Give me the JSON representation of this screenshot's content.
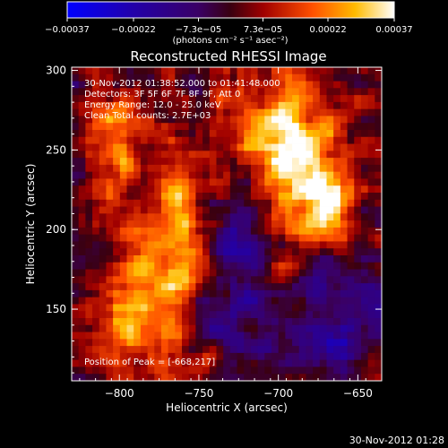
{
  "chart_data": {
    "type": "heatmap",
    "title": "Reconstructed RHESSI Image",
    "xlabel": "Heliocentric X (arcsec)",
    "ylabel": "Heliocentric Y (arcsec)",
    "xlim": [
      -830,
      -635
    ],
    "ylim": [
      105,
      302
    ],
    "xticks": [
      {
        "value": -800,
        "label": "−800"
      },
      {
        "value": -750,
        "label": "−750"
      },
      {
        "value": -700,
        "label": "−700"
      },
      {
        "value": -650,
        "label": "−650"
      }
    ],
    "yticks": [
      {
        "value": 150,
        "label": "150"
      },
      {
        "value": 200,
        "label": "200"
      },
      {
        "value": 250,
        "label": "250"
      },
      {
        "value": 300,
        "label": "300"
      }
    ],
    "colorbar": {
      "range": [
        -0.00037,
        0.00037
      ],
      "tick_values": [
        -0.00037,
        -0.00022,
        -7.3e-05,
        7.3e-05,
        0.00022,
        0.00037
      ],
      "tick_labels": [
        "−0.00037",
        "−0.00022",
        "−7.3e−05",
        "7.3e−05",
        "0.00022",
        "0.00037"
      ],
      "label": "(photons cm⁻² s⁻¹ asec⁻²)"
    },
    "annotations": [
      "30-Nov-2012 01:38:52.000 to 01:41:48.000",
      "Detectors: 3F 5F 6F 7F 8F 9F, Att 0",
      "Energy Range: 12.0 - 25.0 keV",
      "Clean     Total counts: 2.7E+03"
    ],
    "peak_label": "Position of Peak = [-668,217]",
    "peak": [
      -668,
      217
    ],
    "sources": [
      {
        "x": -686,
        "y": 248,
        "sx": 18,
        "sy": 38,
        "amp": 0.00031
      },
      {
        "x": -668,
        "y": 217,
        "sx": 10,
        "sy": 14,
        "amp": 0.00028
      },
      {
        "x": -712,
        "y": 262,
        "sx": 14,
        "sy": 20,
        "amp": 0.00018
      },
      {
        "x": -762,
        "y": 195,
        "sx": 14,
        "sy": 45,
        "amp": 0.00025
      },
      {
        "x": -790,
        "y": 150,
        "sx": 18,
        "sy": 28,
        "amp": 0.00026
      },
      {
        "x": -805,
        "y": 255,
        "sx": 14,
        "sy": 28,
        "amp": 0.0002
      },
      {
        "x": -660,
        "y": 140,
        "sx": 22,
        "sy": 20,
        "amp": -0.00016
      },
      {
        "x": -735,
        "y": 150,
        "sx": 20,
        "sy": 18,
        "amp": -0.00012
      },
      {
        "x": -720,
        "y": 200,
        "sx": 16,
        "sy": 16,
        "amp": -0.0001
      }
    ],
    "noise_amplitude": 0.00011
  },
  "footer_stamp": "30-Nov-2012 01:28"
}
